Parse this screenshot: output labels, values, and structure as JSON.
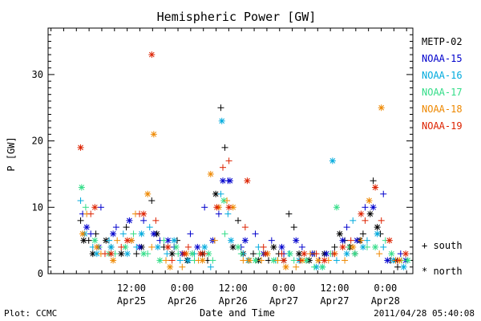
{
  "chart_data": {
    "type": "scatter",
    "title": "Hemispheric Power [GW]",
    "ylabel": "P [GW]",
    "xlabel": "Date and Time",
    "ylim": [
      0,
      37
    ],
    "xlim": [
      -0.32,
      3.27
    ],
    "x_unit": "days relative to 2011-04-25 00:00",
    "yticks": [
      0,
      10,
      20,
      30
    ],
    "xticks": [
      {
        "x": 0.5,
        "line1": "12:00",
        "line2": "Apr25"
      },
      {
        "x": 1.0,
        "line1": "0:00",
        "line2": "Apr26"
      },
      {
        "x": 1.5,
        "line1": "12:00",
        "line2": "Apr26"
      },
      {
        "x": 2.0,
        "line1": "0:00",
        "line2": "Apr27"
      },
      {
        "x": 2.5,
        "line1": "12:00",
        "line2": "Apr27"
      },
      {
        "x": 3.0,
        "line1": "0:00",
        "line2": "Apr28"
      }
    ],
    "legend_placement": "right",
    "series": [
      {
        "name": "METP-02",
        "color": "#000000",
        "south": [
          [
            0.0,
            8
          ],
          [
            0.08,
            5
          ],
          [
            0.15,
            6
          ],
          [
            0.3,
            4
          ],
          [
            0.45,
            7
          ],
          [
            0.55,
            3
          ],
          [
            0.7,
            11
          ],
          [
            0.82,
            4
          ],
          [
            0.95,
            5
          ],
          [
            1.1,
            3
          ],
          [
            1.25,
            2
          ],
          [
            1.38,
            25
          ],
          [
            1.42,
            19
          ],
          [
            1.55,
            8
          ],
          [
            1.7,
            3
          ],
          [
            1.85,
            2
          ],
          [
            1.95,
            3
          ],
          [
            2.05,
            9
          ],
          [
            2.1,
            7
          ],
          [
            2.3,
            3
          ],
          [
            2.5,
            4
          ],
          [
            2.6,
            5
          ],
          [
            2.7,
            3
          ],
          [
            2.78,
            6
          ],
          [
            2.88,
            14
          ],
          [
            2.95,
            6
          ],
          [
            3.05,
            2
          ],
          [
            3.12,
            1
          ]
        ],
        "north": [
          [
            0.03,
            5
          ],
          [
            0.12,
            3
          ],
          [
            0.25,
            5
          ],
          [
            0.4,
            3
          ],
          [
            0.6,
            4
          ],
          [
            0.75,
            6
          ],
          [
            0.9,
            3
          ],
          [
            1.05,
            2
          ],
          [
            1.2,
            3
          ],
          [
            1.33,
            12
          ],
          [
            1.5,
            4
          ],
          [
            1.6,
            3
          ],
          [
            1.75,
            2
          ],
          [
            1.9,
            4
          ],
          [
            2.15,
            3
          ],
          [
            2.25,
            2
          ],
          [
            2.4,
            3
          ],
          [
            2.55,
            6
          ],
          [
            2.65,
            4
          ],
          [
            2.75,
            5
          ],
          [
            2.85,
            9
          ],
          [
            2.92,
            7
          ],
          [
            3.1,
            2
          ]
        ]
      },
      {
        "name": "NOAA-15",
        "color": "#0000cc",
        "south": [
          [
            0.02,
            9
          ],
          [
            0.1,
            6
          ],
          [
            0.2,
            10
          ],
          [
            0.35,
            7
          ],
          [
            0.5,
            5
          ],
          [
            0.62,
            8
          ],
          [
            0.78,
            5
          ],
          [
            0.92,
            4
          ],
          [
            1.08,
            6
          ],
          [
            1.22,
            10
          ],
          [
            1.36,
            9
          ],
          [
            1.45,
            14
          ],
          [
            1.58,
            4
          ],
          [
            1.72,
            6
          ],
          [
            1.88,
            5
          ],
          [
            2.0,
            3
          ],
          [
            2.18,
            4
          ],
          [
            2.35,
            2
          ],
          [
            2.48,
            3
          ],
          [
            2.62,
            7
          ],
          [
            2.8,
            10
          ],
          [
            2.98,
            12
          ],
          [
            3.15,
            3
          ]
        ],
        "north": [
          [
            0.06,
            7
          ],
          [
            0.18,
            4
          ],
          [
            0.32,
            6
          ],
          [
            0.48,
            8
          ],
          [
            0.58,
            4
          ],
          [
            0.72,
            6
          ],
          [
            0.86,
            5
          ],
          [
            1.0,
            3
          ],
          [
            1.15,
            4
          ],
          [
            1.3,
            5
          ],
          [
            1.4,
            14
          ],
          [
            1.47,
            14
          ],
          [
            1.62,
            5
          ],
          [
            1.8,
            3
          ],
          [
            1.98,
            4
          ],
          [
            2.12,
            5
          ],
          [
            2.28,
            3
          ],
          [
            2.42,
            3
          ],
          [
            2.58,
            5
          ],
          [
            2.72,
            5
          ],
          [
            2.88,
            10
          ],
          [
            3.02,
            2
          ],
          [
            3.2,
            2
          ]
        ]
      },
      {
        "name": "NOAA-16",
        "color": "#00aadd",
        "south": [
          [
            0.0,
            11
          ],
          [
            0.12,
            4
          ],
          [
            0.28,
            5
          ],
          [
            0.42,
            6
          ],
          [
            0.55,
            4
          ],
          [
            0.68,
            7
          ],
          [
            0.85,
            3
          ],
          [
            0.98,
            2
          ],
          [
            1.12,
            3
          ],
          [
            1.28,
            1
          ],
          [
            1.38,
            12
          ],
          [
            1.45,
            9
          ],
          [
            1.6,
            3
          ],
          [
            1.75,
            4
          ],
          [
            1.92,
            2
          ],
          [
            2.05,
            3
          ],
          [
            2.22,
            2
          ],
          [
            2.38,
            1
          ],
          [
            2.52,
            2
          ],
          [
            2.68,
            8
          ],
          [
            2.82,
            5
          ],
          [
            2.98,
            4
          ],
          [
            3.12,
            2
          ]
        ],
        "north": [
          [
            0.04,
            6
          ],
          [
            0.16,
            3
          ],
          [
            0.3,
            4
          ],
          [
            0.46,
            3
          ],
          [
            0.6,
            6
          ],
          [
            0.76,
            4
          ],
          [
            0.92,
            5
          ],
          [
            1.06,
            2
          ],
          [
            1.22,
            4
          ],
          [
            1.39,
            23
          ],
          [
            1.48,
            5
          ],
          [
            1.65,
            2
          ],
          [
            1.82,
            3
          ],
          [
            2.0,
            2
          ],
          [
            2.15,
            2
          ],
          [
            2.32,
            1
          ],
          [
            2.48,
            17
          ],
          [
            2.62,
            3
          ],
          [
            2.78,
            4
          ],
          [
            2.92,
            6
          ],
          [
            3.08,
            2
          ],
          [
            3.18,
            1
          ]
        ]
      },
      {
        "name": "NOAA-17",
        "color": "#33dd88",
        "south": [
          [
            0.05,
            10
          ],
          [
            0.18,
            4
          ],
          [
            0.34,
            3
          ],
          [
            0.52,
            6
          ],
          [
            0.66,
            3
          ],
          [
            0.82,
            5
          ],
          [
            0.96,
            3
          ],
          [
            1.12,
            2
          ],
          [
            1.3,
            2
          ],
          [
            1.42,
            6
          ],
          [
            1.58,
            3
          ],
          [
            1.76,
            3
          ],
          [
            1.94,
            2
          ],
          [
            2.1,
            2
          ],
          [
            2.3,
            1
          ],
          [
            2.46,
            3
          ],
          [
            2.64,
            4
          ],
          [
            2.82,
            4
          ],
          [
            3.0,
            5
          ],
          [
            3.16,
            2
          ]
        ],
        "north": [
          [
            0.01,
            13
          ],
          [
            0.14,
            5
          ],
          [
            0.28,
            3
          ],
          [
            0.44,
            4
          ],
          [
            0.62,
            3
          ],
          [
            0.78,
            2
          ],
          [
            0.94,
            4
          ],
          [
            1.1,
            3
          ],
          [
            1.26,
            3
          ],
          [
            1.41,
            11
          ],
          [
            1.55,
            4
          ],
          [
            1.72,
            2
          ],
          [
            1.9,
            2
          ],
          [
            2.06,
            3
          ],
          [
            2.22,
            2
          ],
          [
            2.38,
            1
          ],
          [
            2.52,
            10
          ],
          [
            2.7,
            3
          ],
          [
            2.9,
            4
          ],
          [
            3.06,
            3
          ],
          [
            3.22,
            2
          ]
        ]
      },
      {
        "name": "NOAA-18",
        "color": "#ee8800",
        "south": [
          [
            0.06,
            9
          ],
          [
            0.2,
            3
          ],
          [
            0.36,
            5
          ],
          [
            0.54,
            9
          ],
          [
            0.7,
            4
          ],
          [
            0.84,
            2
          ],
          [
            1.0,
            1
          ],
          [
            1.16,
            2
          ],
          [
            1.32,
            5
          ],
          [
            1.44,
            11
          ],
          [
            1.6,
            2
          ],
          [
            1.78,
            2
          ],
          [
            1.94,
            2
          ],
          [
            2.12,
            1
          ],
          [
            2.26,
            3
          ],
          [
            2.44,
            2
          ],
          [
            2.6,
            2
          ],
          [
            2.76,
            5
          ],
          [
            2.94,
            3
          ],
          [
            3.1,
            2
          ]
        ],
        "north": [
          [
            0.02,
            6
          ],
          [
            0.16,
            4
          ],
          [
            0.32,
            2
          ],
          [
            0.5,
            5
          ],
          [
            0.66,
            12
          ],
          [
            0.72,
            21
          ],
          [
            0.88,
            1
          ],
          [
            1.04,
            3
          ],
          [
            1.2,
            2
          ],
          [
            1.28,
            15
          ],
          [
            1.36,
            10
          ],
          [
            1.5,
            10
          ],
          [
            1.66,
            2
          ],
          [
            1.84,
            3
          ],
          [
            2.02,
            1
          ],
          [
            2.18,
            2
          ],
          [
            2.34,
            2
          ],
          [
            2.5,
            3
          ],
          [
            2.68,
            4
          ],
          [
            2.84,
            11
          ],
          [
            2.96,
            25
          ],
          [
            3.14,
            2
          ]
        ]
      },
      {
        "name": "NOAA-19",
        "color": "#dd2200",
        "south": [
          [
            0.1,
            9
          ],
          [
            0.24,
            3
          ],
          [
            0.4,
            4
          ],
          [
            0.58,
            9
          ],
          [
            0.74,
            8
          ],
          [
            0.9,
            2
          ],
          [
            1.06,
            4
          ],
          [
            1.22,
            3
          ],
          [
            1.4,
            16
          ],
          [
            1.46,
            17
          ],
          [
            1.62,
            7
          ],
          [
            1.8,
            4
          ],
          [
            1.98,
            3
          ],
          [
            2.16,
            2
          ],
          [
            2.32,
            3
          ],
          [
            2.5,
            3
          ],
          [
            2.66,
            5
          ],
          [
            2.8,
            8
          ],
          [
            2.96,
            8
          ],
          [
            3.12,
            2
          ]
        ],
        "north": [
          [
            0.0,
            19
          ],
          [
            0.14,
            10
          ],
          [
            0.3,
            3
          ],
          [
            0.46,
            5
          ],
          [
            0.62,
            9
          ],
          [
            0.7,
            33
          ],
          [
            0.86,
            4
          ],
          [
            1.02,
            3
          ],
          [
            1.18,
            3
          ],
          [
            1.34,
            10
          ],
          [
            1.46,
            10
          ],
          [
            1.64,
            14
          ],
          [
            1.82,
            3
          ],
          [
            2.0,
            2
          ],
          [
            2.2,
            3
          ],
          [
            2.4,
            2
          ],
          [
            2.58,
            4
          ],
          [
            2.76,
            9
          ],
          [
            2.9,
            13
          ],
          [
            3.04,
            5
          ],
          [
            3.2,
            3
          ]
        ]
      }
    ],
    "marker_legend": {
      "south": "+ south",
      "north": "* north"
    },
    "footer_left": "Plot: CCMC",
    "footer_right": "2011/04/28 05:40:08"
  }
}
